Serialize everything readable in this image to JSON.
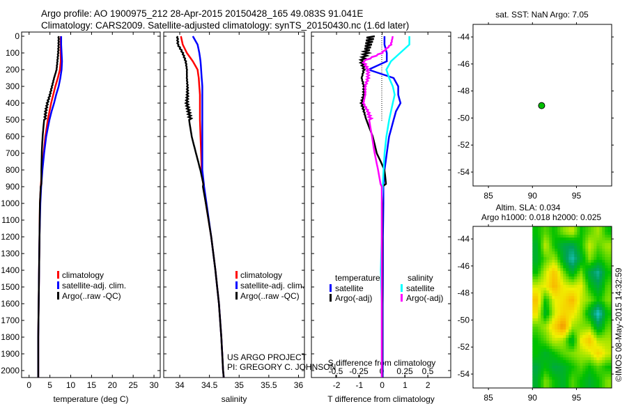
{
  "title": {
    "line1": "Argo profile: AO 1900975_212 28-Apr-2015 20150428_165 49.083S 91.041E",
    "line2": "Climatology: CARS2009. Satellite-adjusted climatology: synTS_20150430.nc (1.6d later)"
  },
  "colors": {
    "climatology": "#ff0000",
    "satellite": "#0000ff",
    "argo": "#000000",
    "sal_satellite": "#00ffff",
    "sal_argo": "#ff00ff",
    "float": "#00c000"
  },
  "credits": {
    "project": "US ARGO PROJECT",
    "pi": "PI: GREGORY C. JOHNSON",
    "copyright": "©IMOS 08-May-2015 14:32:59"
  },
  "chart_data": [
    {
      "type": "line",
      "name": "temperature",
      "xlabel": "temperature (deg C)",
      "xlim": [
        -1.8,
        31.5
      ],
      "ylim": [
        0,
        2040
      ],
      "xticks": [
        0,
        5,
        10,
        15,
        20,
        25,
        30
      ],
      "yticks": [
        0,
        100,
        200,
        300,
        400,
        500,
        600,
        700,
        800,
        900,
        1000,
        1100,
        1200,
        1300,
        1400,
        1500,
        1600,
        1700,
        1800,
        1900,
        2000
      ],
      "y": [
        0,
        50,
        100,
        150,
        200,
        250,
        300,
        350,
        400,
        450,
        500,
        600,
        700,
        800,
        900,
        1000,
        1200,
        1400,
        1600,
        1800,
        2000,
        2040
      ],
      "series": [
        {
          "name": "climatology",
          "color": "#ff0000",
          "values": [
            7.6,
            7.6,
            7.6,
            7.6,
            7.4,
            6.9,
            6.3,
            5.8,
            5.3,
            4.9,
            4.5,
            3.9,
            3.5,
            3.1,
            2.8,
            2.6,
            2.5,
            2.4,
            2.3,
            2.2,
            2.2,
            2.2
          ]
        },
        {
          "name": "satellite-adj. clim.",
          "color": "#0000ff",
          "values": [
            7.7,
            7.7,
            7.8,
            7.9,
            7.8,
            7.5,
            7.1,
            6.5,
            6.0,
            5.4,
            4.9,
            4.1,
            3.6,
            3.2,
            2.9,
            2.7,
            2.5,
            2.4,
            2.3,
            2.2,
            2.2,
            2.2
          ]
        },
        {
          "name": "Argo(..raw -QC)",
          "color": "#000000",
          "values": [
            7.1,
            7.1,
            7.0,
            6.8,
            6.6,
            6.0,
            5.5,
            5.0,
            4.4,
            4.0,
            3.8,
            3.4,
            3.1,
            2.9,
            2.8,
            2.6,
            2.5,
            2.4,
            2.3,
            2.2,
            2.2,
            2.2
          ]
        }
      ],
      "legend": {
        "items": [
          "climatology",
          "satellite-adj. clim.",
          "Argo(..raw -QC)"
        ],
        "placement": "lower-center"
      }
    },
    {
      "type": "line",
      "name": "salinity",
      "xlabel": "salinity",
      "xlim": [
        33.73,
        36.1
      ],
      "ylim": [
        0,
        2040
      ],
      "xticks": [
        "34",
        "34.5",
        "35",
        "35.5",
        "36"
      ],
      "y": [
        0,
        50,
        100,
        150,
        200,
        250,
        300,
        350,
        400,
        450,
        500,
        600,
        700,
        800,
        900,
        1000,
        1200,
        1400,
        1600,
        1800,
        2000,
        2040
      ],
      "series": [
        {
          "name": "climatology",
          "color": "#ff0000",
          "values": [
            34.02,
            34.05,
            34.12,
            34.22,
            34.3,
            34.32,
            34.33,
            34.34,
            34.34,
            34.34,
            34.34,
            34.35,
            34.36,
            34.37,
            34.4,
            34.44,
            34.53,
            34.6,
            34.66,
            34.7,
            34.73,
            34.74
          ]
        },
        {
          "name": "satellite-adj. clim.",
          "color": "#0000ff",
          "values": [
            34.22,
            34.3,
            34.33,
            34.35,
            34.36,
            34.37,
            34.38,
            34.38,
            34.38,
            34.38,
            34.38,
            34.38,
            34.38,
            34.38,
            34.41,
            34.45,
            34.53,
            34.6,
            34.66,
            34.7,
            34.73,
            34.74
          ]
        },
        {
          "name": "Argo(..raw -QC)",
          "color": "#000000",
          "values": [
            33.96,
            33.97,
            34.05,
            34.1,
            34.12,
            34.12,
            34.13,
            34.13,
            34.12,
            34.15,
            34.18,
            34.22,
            34.28,
            34.34,
            34.39,
            34.44,
            34.53,
            34.6,
            34.66,
            34.7,
            34.73,
            34.74
          ]
        }
      ],
      "legend": {
        "items": [
          "climatology",
          "satellite-adj. clim.",
          "Argo(..raw -QC)"
        ],
        "placement": "lower-center"
      }
    },
    {
      "type": "line",
      "name": "difference",
      "xlabel": "T difference from climatology",
      "x2label": "S difference from climatology",
      "xlim": [
        -3.1,
        3.0
      ],
      "x2lim": [
        -0.5,
        0.5
      ],
      "xticks": [
        -2,
        -1,
        0,
        1,
        2
      ],
      "x2ticks": [
        "-0.5",
        "-0.25",
        "0",
        "0.25",
        "0.5"
      ],
      "x2ticks_values": [
        -0.5,
        -0.25,
        0,
        0.25,
        0.5
      ],
      "ylim": [
        0,
        2040
      ],
      "y": [
        0,
        50,
        100,
        150,
        200,
        250,
        300,
        350,
        400,
        450,
        500,
        600,
        700,
        800,
        900,
        1000,
        1200,
        1400,
        1600,
        1800,
        2000,
        2040
      ],
      "series": [
        {
          "name": "temperature satellite",
          "axis": "T",
          "color": "#0000ff",
          "values": [
            0.1,
            0.1,
            0.2,
            0.2,
            -0.6,
            0.5,
            0.7,
            0.7,
            0.8,
            0.6,
            0.5,
            0.3,
            0.2,
            0.1,
            0.05,
            0.05,
            0.03,
            0.03,
            0.02,
            0.02,
            0.02,
            0.02
          ]
        },
        {
          "name": "temperature Argo(-adj)",
          "axis": "T",
          "color": "#000000",
          "values": [
            -0.5,
            -0.6,
            -0.7,
            -0.9,
            -0.8,
            -0.9,
            -0.8,
            -0.8,
            -0.9,
            -0.8,
            -0.7,
            -0.5,
            -0.4,
            -0.1,
            0.0,
            0.0,
            0.0,
            0.0,
            0.0,
            0.0,
            0.0,
            0.0
          ]
        },
        {
          "name": "salinity satellite",
          "axis": "S",
          "color": "#00ffff",
          "values": [
            0.3,
            0.3,
            0.2,
            0.1,
            0.05,
            0.08,
            0.12,
            0.14,
            0.12,
            0.1,
            0.08,
            0.05,
            0.03,
            0.02,
            0.01,
            0.0,
            0.0,
            -0.01,
            0.0,
            0.0,
            0.0,
            0.0
          ]
        },
        {
          "name": "salinity Argo(-adj)",
          "axis": "S",
          "color": "#ff00ff",
          "values": [
            0.12,
            0.1,
            0.0,
            -0.2,
            -0.15,
            -0.15,
            -0.18,
            -0.18,
            -0.2,
            -0.15,
            -0.12,
            -0.08,
            -0.05,
            -0.02,
            0.0,
            0.0,
            0.0,
            0.0,
            0.0,
            0.0,
            0.0,
            0.0
          ]
        }
      ],
      "legend": {
        "temperature_header": "temperature",
        "salinity_header": "salinity",
        "satellite": "satellite",
        "argo": "Argo(-adj)",
        "placement": "lower-center"
      }
    },
    {
      "type": "scatter",
      "name": "float-location",
      "title": "sat. SST: NaN Argo: 7.05",
      "xlim": [
        83.25,
        99.0
      ],
      "ylim": [
        -55.03,
        -43.07
      ],
      "xticks": [
        85,
        90,
        95
      ],
      "yticks": [
        -44,
        -46,
        -48,
        -50,
        -52,
        -54
      ],
      "points": [
        {
          "lon": 91.041,
          "lat": -49.083
        }
      ]
    },
    {
      "type": "heatmap",
      "name": "altimetry-sla",
      "title1": "Altim. SLA: 0.034",
      "title2": "Argo h1000: 0.018 h2000: 0.025",
      "xlim": [
        83.25,
        99.0
      ],
      "ylim": [
        -55.03,
        -43.07
      ],
      "xticks": [
        85,
        90,
        95
      ],
      "yticks": [
        -44,
        -46,
        -48,
        -50,
        -52,
        -54
      ],
      "lon": [
        90.5,
        91.5,
        92.5,
        93.5,
        94.5,
        95.5,
        96.5,
        97.5,
        98.5
      ],
      "lat": [
        -43.5,
        -44.5,
        -45.5,
        -46.5,
        -47.5,
        -48.5,
        -49.5,
        -50.5,
        -51.5,
        -52.5,
        -53.5,
        -54.5
      ],
      "values": [
        [
          0.0,
          0.02,
          0.0,
          0.03,
          0.05,
          0.0,
          0.02,
          0.04,
          0.0
        ],
        [
          -0.02,
          0.05,
          0.0,
          -0.03,
          -0.04,
          0.0,
          0.05,
          0.02,
          0.04
        ],
        [
          -0.02,
          0.02,
          0.04,
          -0.02,
          -0.07,
          -0.02,
          0.03,
          0.0,
          0.02
        ],
        [
          0.0,
          0.05,
          0.09,
          0.03,
          -0.02,
          0.03,
          -0.03,
          -0.06,
          0.0
        ],
        [
          0.05,
          0.06,
          0.1,
          0.06,
          0.05,
          0.06,
          0.0,
          -0.03,
          0.02
        ],
        [
          0.09,
          0.0,
          0.06,
          0.07,
          0.1,
          0.05,
          0.03,
          0.0,
          0.03
        ],
        [
          0.07,
          -0.02,
          0.05,
          0.08,
          0.07,
          0.04,
          -0.02,
          -0.08,
          0.0
        ],
        [
          0.02,
          0.04,
          0.08,
          0.12,
          0.04,
          0.03,
          0.03,
          -0.03,
          0.02
        ],
        [
          0.0,
          0.02,
          0.05,
          0.04,
          -0.02,
          0.06,
          0.09,
          0.04,
          0.04
        ],
        [
          0.0,
          -0.02,
          0.0,
          0.02,
          0.03,
          0.04,
          0.05,
          0.08,
          0.05
        ],
        [
          -0.03,
          0.0,
          -0.03,
          -0.02,
          0.0,
          0.02,
          0.0,
          0.02,
          0.0
        ],
        [
          -0.02,
          0.03,
          0.0,
          -0.02,
          0.02,
          0.0,
          -0.02,
          0.0,
          0.03
        ]
      ]
    }
  ]
}
